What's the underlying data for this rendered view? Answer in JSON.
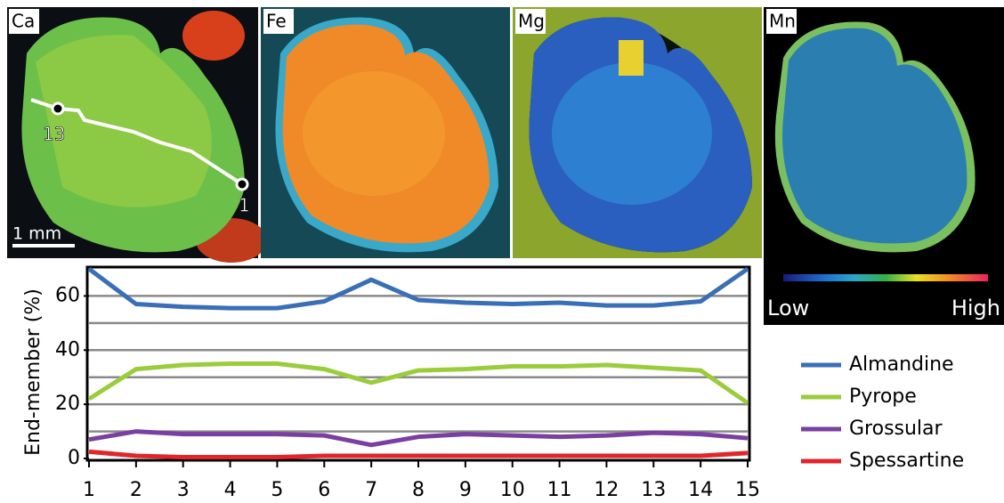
{
  "panels": [
    {
      "label": "Ca"
    },
    {
      "label": "Fe"
    },
    {
      "label": "Mg"
    },
    {
      "label": "Mn"
    }
  ],
  "scale_bar": "1 mm",
  "profile_labels": {
    "start": "13",
    "end": "1"
  },
  "colorbar": {
    "low": "Low",
    "high": "High"
  },
  "chart_data": {
    "type": "line",
    "y_label": "End-member (%)",
    "x": [
      1,
      2,
      3,
      4,
      5,
      6,
      7,
      8,
      9,
      10,
      11,
      12,
      13,
      14,
      15
    ],
    "xlim": [
      1,
      15
    ],
    "xticks": [
      1,
      2,
      3,
      4,
      5,
      6,
      7,
      8,
      9,
      10,
      11,
      12,
      13,
      14,
      15
    ],
    "ylim": [
      0,
      70
    ],
    "yticks": [
      0,
      20,
      40,
      60
    ],
    "grid_yticks": [
      10,
      20,
      30,
      40,
      50,
      60
    ],
    "grid": true,
    "legend": "right",
    "series": [
      {
        "name": "Almandine",
        "color": "#3a6fb8",
        "values": [
          70,
          57,
          56,
          55.5,
          55.5,
          58,
          66,
          58.5,
          57.5,
          57,
          57.5,
          56.5,
          56.5,
          58,
          70
        ]
      },
      {
        "name": "Pyrope",
        "color": "#9acd3c",
        "values": [
          22,
          33,
          34.5,
          35,
          35,
          33,
          28,
          32.5,
          33,
          34,
          34,
          34.5,
          33.5,
          32.5,
          20.5
        ]
      },
      {
        "name": "Grossular",
        "color": "#7a3fa0",
        "values": [
          7,
          10,
          9,
          9,
          9,
          8.5,
          5,
          8,
          9,
          8.5,
          8,
          8.5,
          9.5,
          9,
          7.5
        ]
      },
      {
        "name": "Spessartine",
        "color": "#e0262b",
        "values": [
          2.5,
          1,
          0.5,
          0.5,
          0.5,
          1,
          1,
          1,
          1,
          1,
          1,
          1,
          1,
          1,
          2
        ]
      }
    ]
  }
}
